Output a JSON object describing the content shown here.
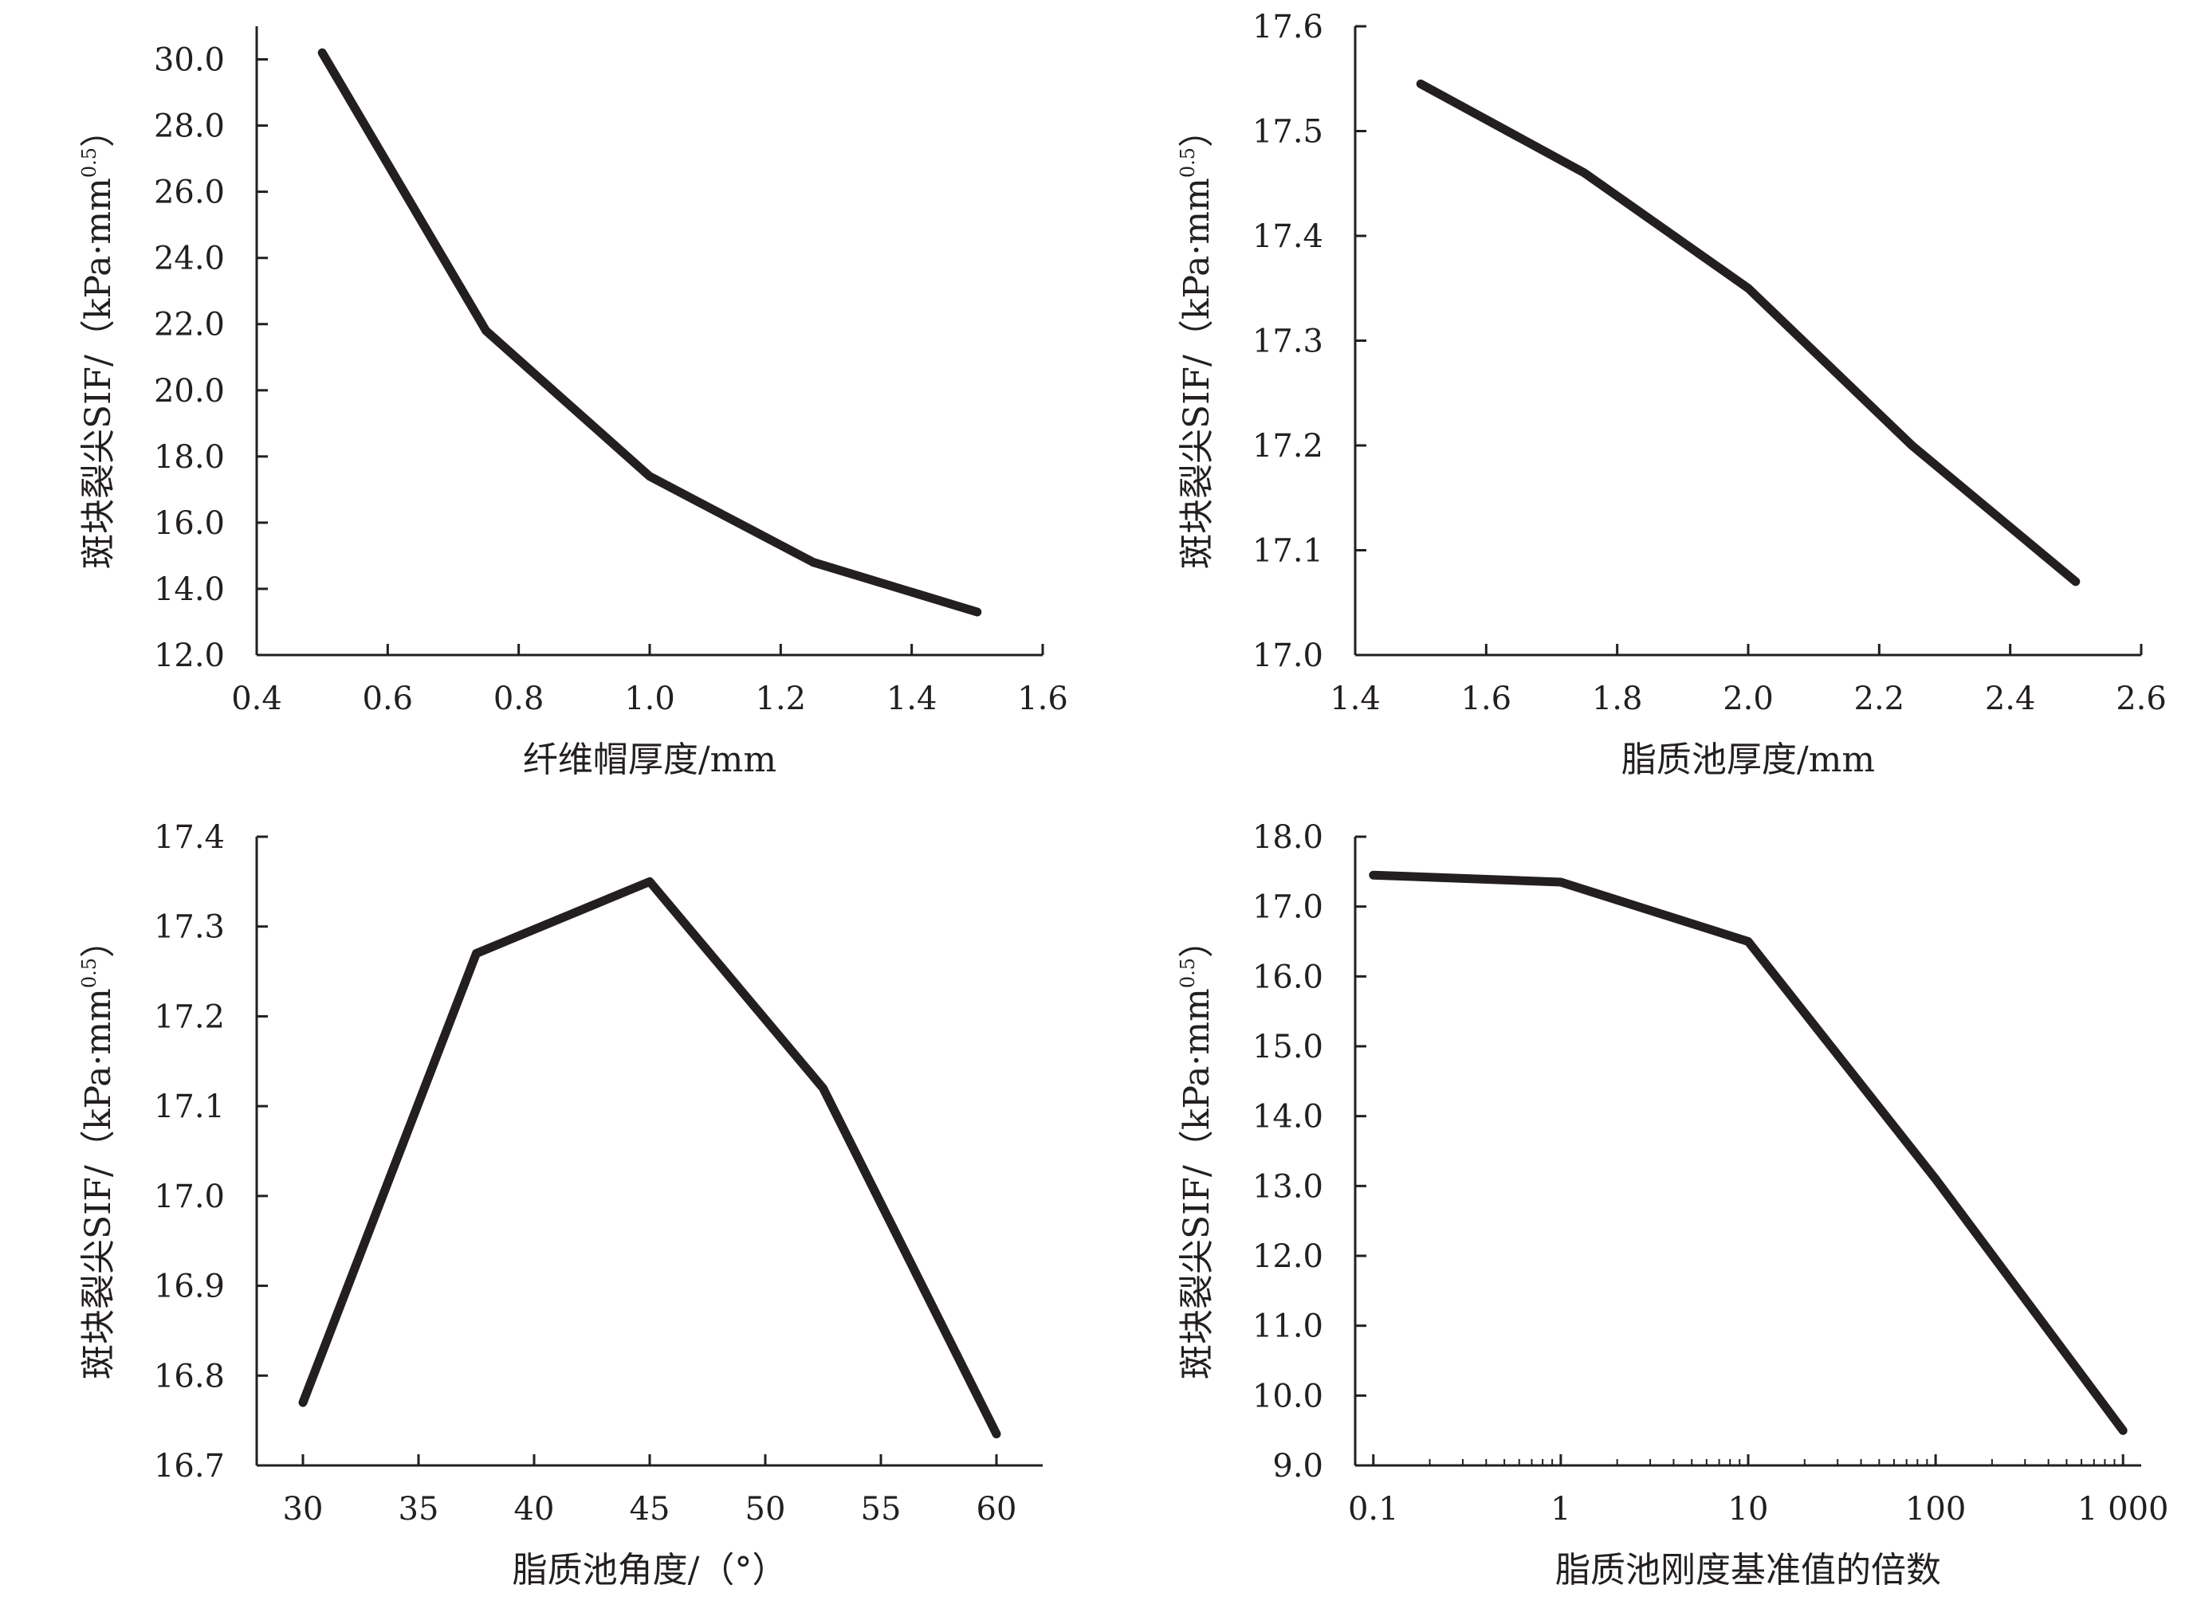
{
  "chart_data": [
    {
      "type": "line",
      "title": "",
      "xlabel": "纤维帽厚度/mm",
      "ylabel": "斑块裂尖SIF/（kPa·mm",
      "ylabel_sup": "0.5",
      "ylabel_close": "）",
      "xlim": [
        0.4,
        1.6
      ],
      "ylim": [
        12.0,
        31.0
      ],
      "xticks": [
        0.4,
        0.6,
        0.8,
        1.0,
        1.2,
        1.4,
        1.6
      ],
      "xtick_labels": [
        "0.4",
        "0.6",
        "0.8",
        "1.0",
        "1.2",
        "1.4",
        "1.6"
      ],
      "yticks": [
        12,
        14,
        16,
        18,
        20,
        22,
        24,
        26,
        28,
        30
      ],
      "ytick_labels": [
        "12.0",
        "14.0",
        "16.0",
        "18.0",
        "20.0",
        "22.0",
        "24.0",
        "26.0",
        "28.0",
        "30.0"
      ],
      "x_scale": "linear",
      "grid": false,
      "series": [
        {
          "x": [
            0.5,
            0.75,
            1.0,
            1.25,
            1.5
          ],
          "y": [
            30.2,
            21.8,
            17.4,
            14.8,
            13.3
          ]
        }
      ]
    },
    {
      "type": "line",
      "title": "",
      "xlabel": "脂质池厚度/mm",
      "ylabel": "斑块裂尖SIF/（kPa·mm",
      "ylabel_sup": "0.5",
      "ylabel_close": "）",
      "xlim": [
        1.4,
        2.6
      ],
      "ylim": [
        17.0,
        17.6
      ],
      "xticks": [
        1.4,
        1.6,
        1.8,
        2.0,
        2.2,
        2.4,
        2.6
      ],
      "xtick_labels": [
        "1.4",
        "1.6",
        "1.8",
        "2.0",
        "2.2",
        "2.4",
        "2.6"
      ],
      "yticks": [
        17.0,
        17.1,
        17.2,
        17.3,
        17.4,
        17.5,
        17.6
      ],
      "ytick_labels": [
        "17.0",
        "17.1",
        "17.2",
        "17.3",
        "17.4",
        "17.5",
        "17.6"
      ],
      "x_scale": "linear",
      "grid": false,
      "series": [
        {
          "x": [
            1.5,
            1.75,
            2.0,
            2.25,
            2.5
          ],
          "y": [
            17.545,
            17.46,
            17.35,
            17.2,
            17.07
          ]
        }
      ]
    },
    {
      "type": "line",
      "title": "",
      "xlabel": "脂质池角度/（°）",
      "ylabel": "斑块裂尖SIF/（kPa·mm",
      "ylabel_sup": "0.5",
      "ylabel_close": "）",
      "xlim": [
        28,
        62
      ],
      "ylim": [
        16.7,
        17.4
      ],
      "xticks": [
        30,
        35,
        40,
        45,
        50,
        55,
        60
      ],
      "xtick_labels": [
        "30",
        "35",
        "40",
        "45",
        "50",
        "55",
        "60"
      ],
      "yticks": [
        16.7,
        16.8,
        16.9,
        17.0,
        17.1,
        17.2,
        17.3,
        17.4
      ],
      "ytick_labels": [
        "16.7",
        "16.8",
        "16.9",
        "17.0",
        "17.1",
        "17.2",
        "17.3",
        "17.4"
      ],
      "x_scale": "linear",
      "grid": false,
      "series": [
        {
          "x": [
            30,
            37.5,
            45,
            52.5,
            60
          ],
          "y": [
            16.77,
            17.27,
            17.35,
            17.12,
            16.735
          ]
        }
      ]
    },
    {
      "type": "line",
      "title": "",
      "xlabel": "脂质池刚度基准值的倍数",
      "ylabel": "斑块裂尖SIF/（kPa·mm",
      "ylabel_sup": "0.5",
      "ylabel_close": "）",
      "xlim": [
        0.08,
        1250
      ],
      "ylim": [
        9.0,
        18.0
      ],
      "xticks": [
        0.1,
        1,
        10,
        100,
        1000
      ],
      "xtick_labels": [
        "0.1",
        "1",
        "10",
        "100",
        "1 000"
      ],
      "yticks": [
        9,
        10,
        11,
        12,
        13,
        14,
        15,
        16,
        17,
        18
      ],
      "ytick_labels": [
        "9.0",
        "10.0",
        "11.0",
        "12.0",
        "13.0",
        "14.0",
        "15.0",
        "16.0",
        "17.0",
        "18.0"
      ],
      "x_scale": "log",
      "grid": false,
      "series": [
        {
          "x": [
            0.1,
            1,
            10,
            100,
            1000
          ],
          "y": [
            17.45,
            17.35,
            16.5,
            13.1,
            9.5
          ]
        }
      ]
    }
  ]
}
